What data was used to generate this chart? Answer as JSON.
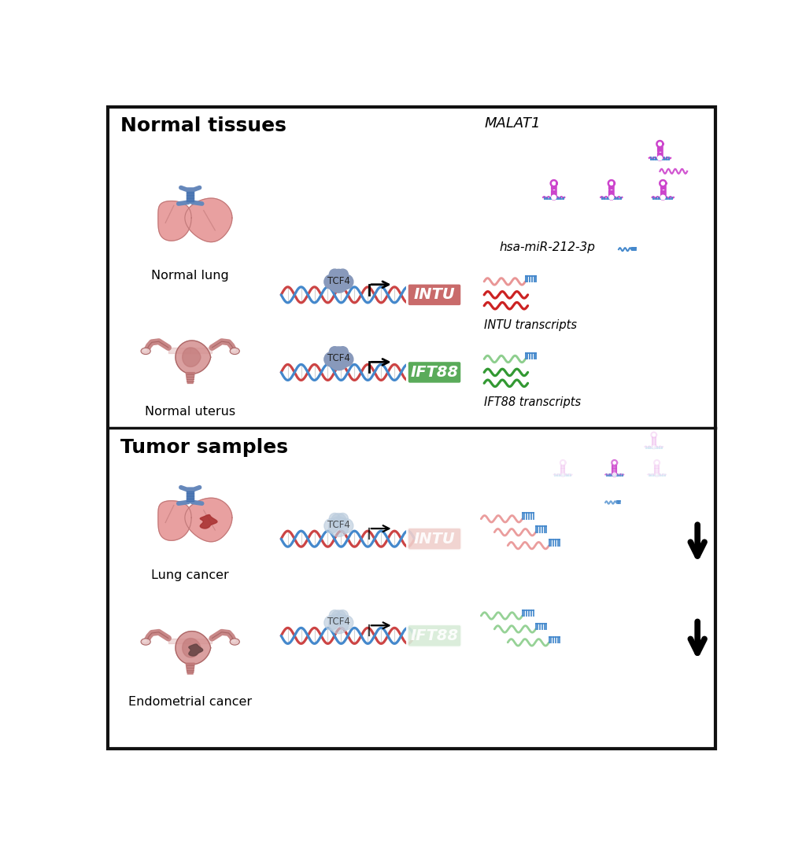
{
  "title_normal": "Normal tissues",
  "title_tumor": "Tumor samples",
  "label_normal_lung": "Normal lung",
  "label_normal_uterus": "Normal uterus",
  "label_lung_cancer": "Lung cancer",
  "label_endometrial": "Endometrial cancer",
  "label_MALAT1": "MALAT1",
  "label_miR": "hsa-miR-212-3p",
  "label_INTU": "INTU",
  "label_IFT88": "IFT88",
  "label_INTU_transcripts": "INTU transcripts",
  "label_IFT88_transcripts": "IFT88 transcripts",
  "label_TCF4": "TCF4",
  "color_INTU_box": "#c96b6b",
  "color_IFT88_box": "#5aab5a",
  "color_INTU_box_faded": "#f0d0cc",
  "color_IFT88_box_faded": "#d8ecd8",
  "color_red_wave": "#cc2222",
  "color_pink_wave": "#e89090",
  "color_green_wave": "#339933",
  "color_lightgreen_wave": "#88cc88",
  "color_blue": "#4488cc",
  "color_magenta": "#cc44cc",
  "color_tcf4_normal": "#8899bb",
  "color_tcf4_faded": "#bbccdd",
  "color_dna_red": "#cc4444",
  "color_dna_blue": "#4488cc",
  "color_lung": "#e8a0a0",
  "color_lung_dark": "#c07878",
  "color_trachea": "#6688bb",
  "color_uterus": "#cc8888",
  "color_uterus_dark": "#aa6666",
  "color_tumor_lung": "#aa3333",
  "color_tumor_uterus": "#664444",
  "bg_color": "#ffffff",
  "border_color": "#222222"
}
